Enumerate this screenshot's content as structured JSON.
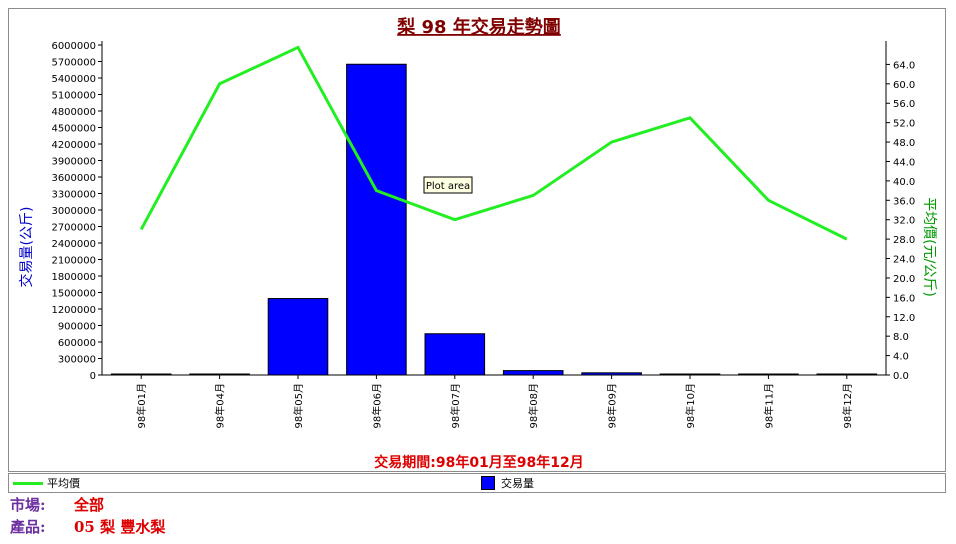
{
  "chart_data": {
    "type": "bar",
    "title": "梨 98 年交易走勢圖",
    "xlabel": "交易期間:98年01月至98年12月",
    "ylabel": "交易量(公斤)",
    "y2label": "平均價(元/公斤)",
    "categories": [
      "98年01月",
      "98年04月",
      "98年05月",
      "98年06月",
      "98年07月",
      "98年08月",
      "98年09月",
      "98年10月",
      "98年11月",
      "98年12月"
    ],
    "ylim": [
      0,
      6000000
    ],
    "y2lim": [
      0,
      68
    ],
    "yticks": [
      "0",
      "300000",
      "600000",
      "900000",
      "1200000",
      "1500000",
      "1800000",
      "2100000",
      "2400000",
      "2700000",
      "3000000",
      "3300000",
      "3600000",
      "3900000",
      "4200000",
      "4500000",
      "4800000",
      "5100000",
      "5400000",
      "5700000",
      "6000000"
    ],
    "y2ticks": [
      "0.0",
      "4.0",
      "8.0",
      "12.0",
      "16.0",
      "20.0",
      "24.0",
      "28.0",
      "32.0",
      "36.0",
      "40.0",
      "44.0",
      "48.0",
      "52.0",
      "56.0",
      "60.0",
      "64.0"
    ],
    "series": [
      {
        "name": "交易量",
        "type": "bar",
        "axis": "left",
        "color": "#0000ff",
        "values": [
          5000,
          8000,
          1390000,
          5650000,
          750000,
          80000,
          40000,
          10000,
          5000,
          5000
        ]
      },
      {
        "name": "平均價",
        "type": "line",
        "axis": "right",
        "color": "#22ee22",
        "values": [
          30.0,
          60.0,
          67.5,
          38.0,
          32.0,
          37.0,
          48.0,
          53.0,
          36.0,
          28.0
        ]
      }
    ],
    "legend_position": "bottom",
    "annotation": "Plot area"
  },
  "info": {
    "market_label": "市場:",
    "market_value": "全部",
    "product_label": "產品:",
    "product_value": "05 梨 豐水梨"
  }
}
